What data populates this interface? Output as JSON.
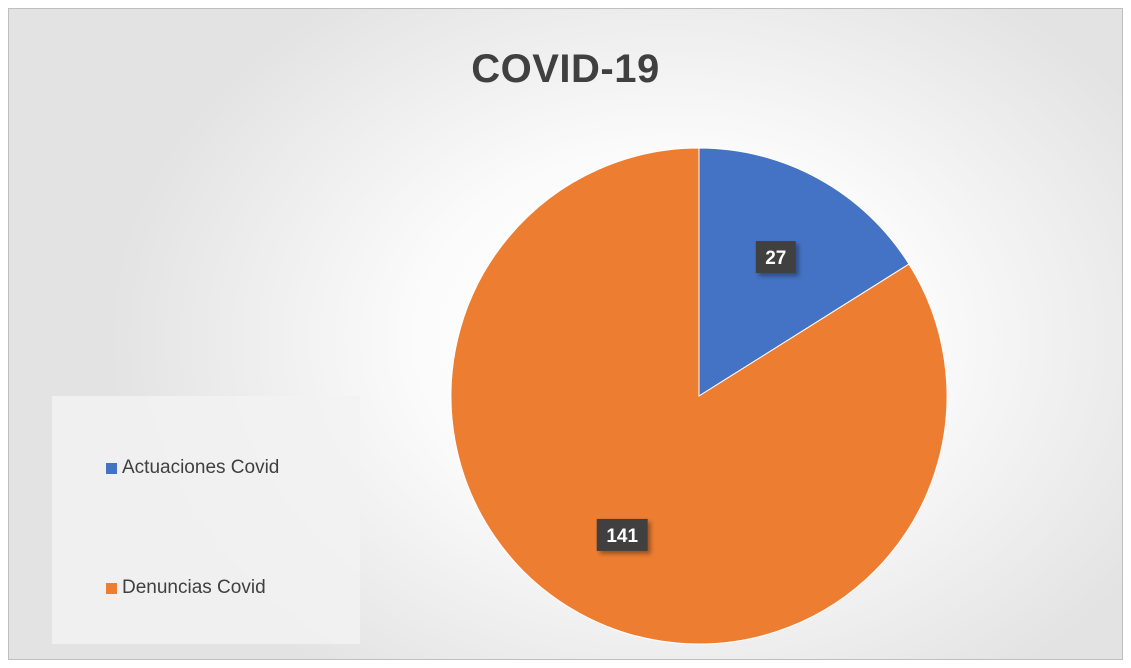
{
  "chart_data": {
    "type": "pie",
    "title": "COVID-19",
    "categories": [
      "Actuaciones Covid",
      "Denuncias Covid"
    ],
    "values": [
      27,
      141
    ],
    "colors": [
      "#4472C4",
      "#ED7D31"
    ],
    "data_labels": [
      "27",
      "141"
    ],
    "legend_placement": "left",
    "start_angle_deg": 0,
    "direction": "clockwise"
  }
}
